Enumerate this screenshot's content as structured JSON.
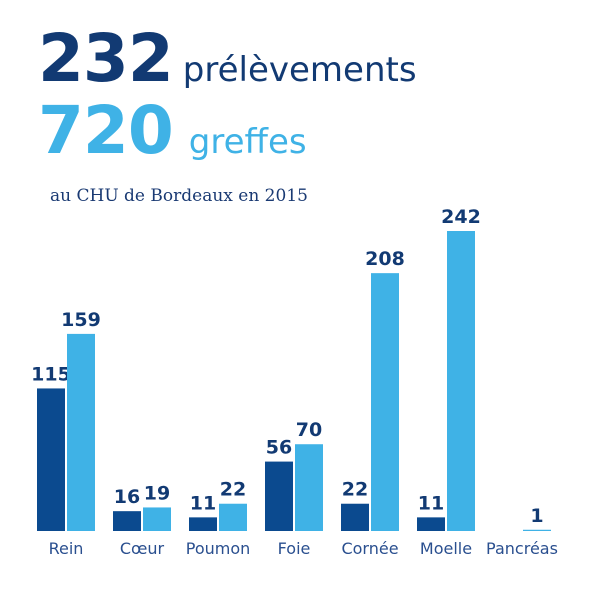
{
  "headline": {
    "line1": {
      "number": "232",
      "word": "prélèvements"
    },
    "line2": {
      "number": "720",
      "word": "greffes"
    },
    "subtitle": "au CHU de Bordeaux en 2015"
  },
  "colors": {
    "dark": "#0b4a8f",
    "light": "#3fb2e6",
    "navy": "#123a73",
    "label": "#2a4f8f"
  },
  "chart_data": {
    "type": "bar",
    "categories": [
      "Rein",
      "Cœur",
      "Poumon",
      "Foie",
      "Cornée",
      "Moelle",
      "Pancréas"
    ],
    "series": [
      {
        "values": [
          115,
          16,
          11,
          56,
          22,
          11,
          null
        ]
      },
      {
        "values": [
          159,
          19,
          22,
          70,
          208,
          242,
          1
        ]
      }
    ],
    "ylim": [
      0,
      242
    ],
    "grid": false
  }
}
